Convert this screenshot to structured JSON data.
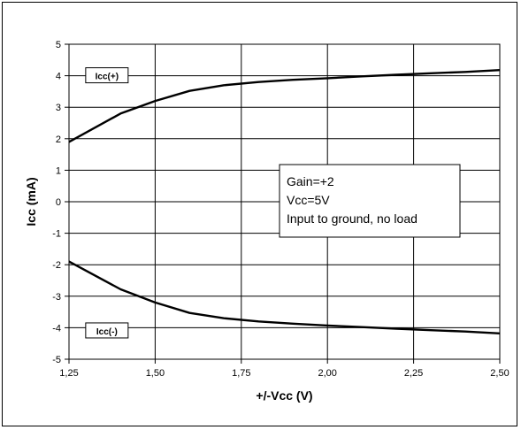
{
  "chart_data": {
    "type": "line",
    "xlabel": "+/-Vcc  (V)",
    "ylabel": "Icc  (mA)",
    "xlim": [
      1.25,
      2.5
    ],
    "ylim": [
      -5,
      5
    ],
    "x_ticks": [
      1.25,
      1.5,
      1.75,
      2.0,
      2.25,
      2.5
    ],
    "x_tick_labels": [
      "1,25",
      "1,50",
      "1,75",
      "2,00",
      "2,25",
      "2,50"
    ],
    "y_ticks": [
      5,
      4,
      3,
      2,
      1,
      0,
      -1,
      -2,
      -3,
      -4,
      -5
    ],
    "y_tick_labels": [
      "5",
      "4",
      "3",
      "2",
      "1",
      "0",
      "-1",
      "-2",
      "-3",
      "-4",
      "-5"
    ],
    "grid": true,
    "series": [
      {
        "name": "Icc(+)",
        "x": [
          1.25,
          1.4,
          1.5,
          1.6,
          1.7,
          1.8,
          1.9,
          2.0,
          2.1,
          2.2,
          2.3,
          2.4,
          2.5
        ],
        "y": [
          1.9,
          2.8,
          3.2,
          3.52,
          3.7,
          3.8,
          3.87,
          3.92,
          3.98,
          4.03,
          4.08,
          4.12,
          4.18
        ]
      },
      {
        "name": "Icc(-)",
        "x": [
          1.25,
          1.4,
          1.5,
          1.6,
          1.7,
          1.8,
          1.9,
          2.0,
          2.1,
          2.2,
          2.3,
          2.4,
          2.5
        ],
        "y": [
          -1.9,
          -2.78,
          -3.2,
          -3.53,
          -3.7,
          -3.8,
          -3.87,
          -3.93,
          -3.98,
          -4.03,
          -4.08,
          -4.12,
          -4.18
        ]
      }
    ],
    "annotation_lines": [
      "Gain=+2",
      "Vcc=5V",
      "Input to ground, no load"
    ],
    "line_color": "#000000"
  }
}
